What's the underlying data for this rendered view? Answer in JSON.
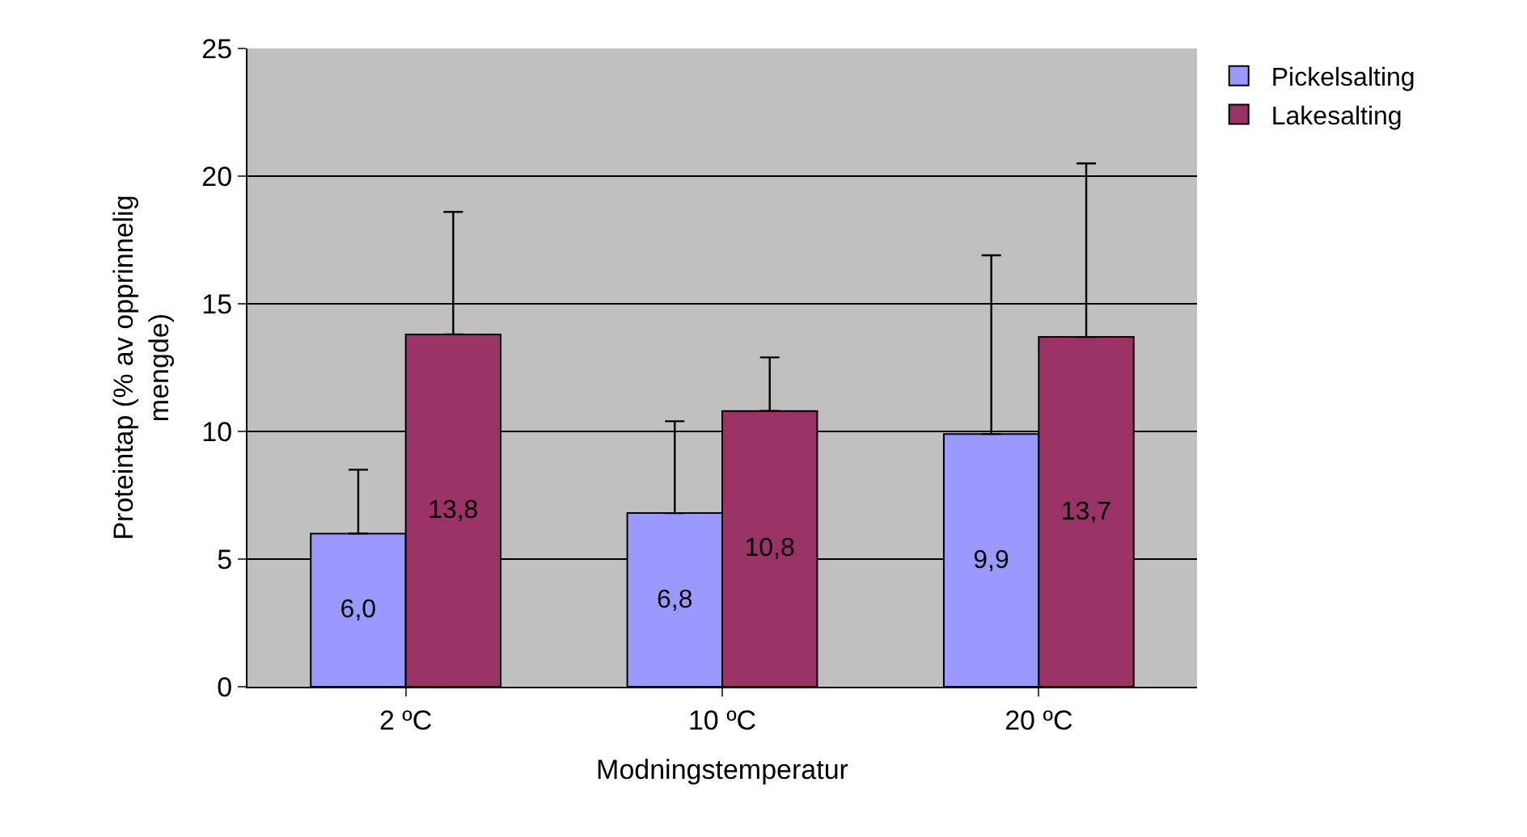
{
  "chart_data": {
    "type": "bar",
    "xlabel": "Modningstemperatur",
    "ylabel": "Proteintap (% av opprinnelig mengde)",
    "categories": [
      "2 ºC",
      "10 ºC",
      "20 ºC"
    ],
    "series": [
      {
        "name": "Pickelsalting",
        "color": "#9999ff",
        "values": [
          6.0,
          6.8,
          9.9
        ],
        "value_labels": [
          "6,0",
          "6,8",
          "9,9"
        ],
        "errors": [
          [
            6.0,
            8.5
          ],
          [
            6.8,
            10.4
          ],
          [
            9.9,
            16.9
          ]
        ]
      },
      {
        "name": "Lakesalting",
        "color": "#993366",
        "values": [
          13.8,
          10.8,
          13.7
        ],
        "value_labels": [
          "13,8",
          "10,8",
          "13,7"
        ],
        "errors": [
          [
            13.8,
            18.6
          ],
          [
            10.8,
            12.9
          ],
          [
            13.7,
            20.5
          ]
        ]
      }
    ],
    "ylim": [
      0,
      25
    ],
    "yticks": [
      0,
      5,
      10,
      15,
      20,
      25
    ],
    "grid": "y",
    "legend": "top right"
  }
}
